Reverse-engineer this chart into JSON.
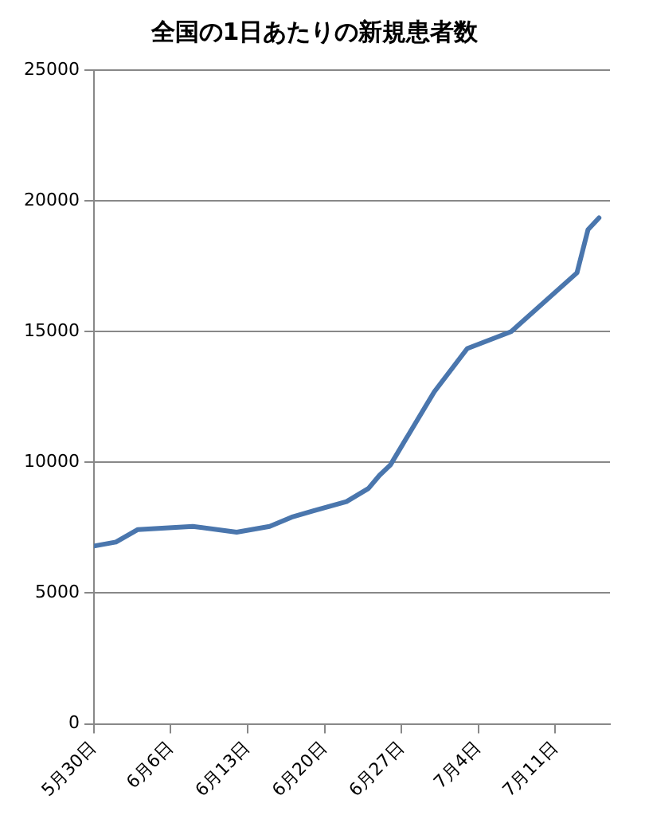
{
  "chart_data": {
    "type": "line",
    "title": "全国の1日あたりの新規患者数",
    "x": [
      "--05-30",
      "--06-01",
      "--06-03",
      "--06-08",
      "--06-12",
      "--06-15",
      "--06-17",
      "--06-19",
      "--06-22",
      "--06-24",
      "--06-25",
      "--06-26",
      "--06-30",
      "--07-03",
      "--07-07",
      "--07-13",
      "--07-14",
      "--07-15"
    ],
    "series": [
      {
        "color": "#4a76ad",
        "values": [
          6800,
          6950,
          7430,
          7550,
          7330,
          7550,
          7900,
          8150,
          8500,
          9000,
          9500,
          9900,
          12700,
          14350,
          15000,
          17250,
          18900,
          19350
        ]
      }
    ],
    "xlim": [
      "--05-30",
      "--07-16"
    ],
    "xticks": [
      {
        "value": "--05-30",
        "label": "5月30日"
      },
      {
        "value": "--06-06",
        "label": "6月6日"
      },
      {
        "value": "--06-13",
        "label": "6月13日"
      },
      {
        "value": "--06-20",
        "label": "6月20日"
      },
      {
        "value": "--06-27",
        "label": "6月27日"
      },
      {
        "value": "--07-04",
        "label": "7月4日"
      },
      {
        "value": "--07-11",
        "label": "7月11日"
      }
    ],
    "ylim": [
      0,
      25000
    ],
    "yticks": [
      0,
      5000,
      10000,
      15000,
      20000,
      25000
    ],
    "grid": "y",
    "legend": false,
    "marker": "none",
    "line_style": "solid"
  }
}
